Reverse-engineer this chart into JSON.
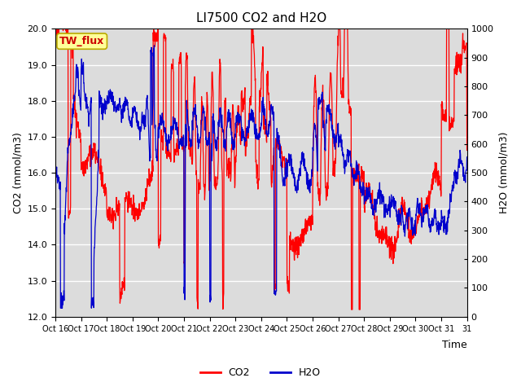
{
  "title": "LI7500 CO2 and H2O",
  "xlabel": "Time",
  "ylabel_left": "CO2 (mmol/m3)",
  "ylabel_right": "H2O (mmol/m3)",
  "co2_color": "#FF0000",
  "h2o_color": "#0000CC",
  "ylim_left": [
    12.0,
    20.0
  ],
  "ylim_right": [
    0,
    1000
  ],
  "annotation_text": "TW_flux",
  "annotation_bg": "#FFFF99",
  "annotation_border": "#BBAA00",
  "plot_bg": "#DCDCDC",
  "fig_bg": "#FFFFFF",
  "yticks_left": [
    12.0,
    13.0,
    14.0,
    15.0,
    16.0,
    17.0,
    18.0,
    19.0,
    20.0
  ],
  "yticks_right": [
    0,
    100,
    200,
    300,
    400,
    500,
    600,
    700,
    800,
    900,
    1000
  ],
  "x_tick_positions": [
    0,
    1,
    2,
    3,
    4,
    5,
    6,
    7,
    8,
    9,
    10,
    11,
    12,
    13,
    14,
    15,
    16
  ],
  "x_tick_labels": [
    "Oct 16",
    "Oct 17",
    "Oct 18",
    "Oct 19",
    "Oct 20",
    "Oct 21",
    "Oct 22",
    "Oct 23",
    "Oct 24",
    "Oct 25",
    "Oct 26",
    "Oct 27",
    "Oct 28",
    "Oct 29",
    "Oct 30",
    "Oct 31",
    "31"
  ],
  "title_fontsize": 11,
  "axis_label_fontsize": 9,
  "tick_fontsize": 8,
  "legend_fontsize": 9,
  "linewidth": 0.9
}
